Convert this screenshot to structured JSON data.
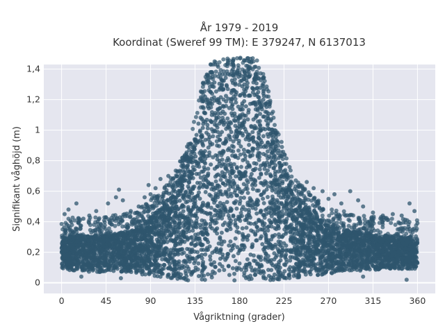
{
  "chart_data": {
    "type": "scatter",
    "title_lines": [
      "År 1979 - 2019",
      "Koordinat (Sweref 99 TM): E 379247, N 6137013"
    ],
    "xlabel": "Vågriktning (grader)",
    "ylabel": "Signifikant våghöjd (m)",
    "xlim": [
      -18,
      378
    ],
    "ylim": [
      -0.07,
      1.43
    ],
    "xticks": [
      0,
      45,
      90,
      135,
      180,
      225,
      270,
      315,
      360
    ],
    "xtick_labels": [
      "0",
      "45",
      "90",
      "135",
      "180",
      "225",
      "270",
      "315",
      "360"
    ],
    "yticks": [
      0,
      0.2,
      0.4,
      0.6,
      0.8,
      1.0,
      1.2,
      1.4
    ],
    "ytick_labels": [
      "0",
      "0,2",
      "0,4",
      "0,6",
      "0,8",
      "1",
      "1,2",
      "1,4"
    ],
    "grid": true,
    "colors": {
      "marker": "#2f566d",
      "plot_bg": "#e5e6ef",
      "grid": "#ffffff"
    },
    "envelope": {
      "description_x_deg": [
        0,
        10,
        20,
        30,
        45,
        60,
        75,
        85,
        95,
        105,
        115,
        125,
        130,
        135,
        140,
        145,
        150,
        155,
        165,
        175,
        185,
        195,
        200,
        205,
        210,
        215,
        220,
        225,
        230,
        240,
        250,
        260,
        270,
        285,
        300,
        315,
        330,
        345,
        360
      ],
      "upper_m": [
        0.3,
        0.31,
        0.31,
        0.31,
        0.32,
        0.33,
        0.35,
        0.4,
        0.46,
        0.52,
        0.62,
        0.74,
        0.85,
        0.98,
        1.12,
        1.24,
        1.31,
        1.34,
        1.35,
        1.36,
        1.36,
        1.35,
        1.33,
        1.25,
        1.12,
        0.98,
        0.86,
        0.76,
        0.65,
        0.55,
        0.48,
        0.42,
        0.38,
        0.35,
        0.33,
        0.32,
        0.31,
        0.3,
        0.29
      ],
      "lower_m": [
        0.09,
        0.08,
        0.08,
        0.07,
        0.07,
        0.07,
        0.06,
        0.05,
        0.04,
        0.03,
        0.02,
        0.02,
        0.01,
        0.01,
        0.01,
        0.01,
        0.01,
        0.01,
        0.01,
        0.01,
        0.01,
        0.01,
        0.01,
        0.01,
        0.01,
        0.01,
        0.02,
        0.02,
        0.03,
        0.03,
        0.04,
        0.05,
        0.06,
        0.07,
        0.08,
        0.08,
        0.09,
        0.09,
        0.09
      ]
    },
    "outliers": [
      [
        3,
        0.45
      ],
      [
        7,
        0.48
      ],
      [
        15,
        0.52
      ],
      [
        22,
        0.42
      ],
      [
        28,
        0.44
      ],
      [
        35,
        0.47
      ],
      [
        40,
        0.38
      ],
      [
        47,
        0.52
      ],
      [
        55,
        0.56
      ],
      [
        58,
        0.61
      ],
      [
        62,
        0.54
      ],
      [
        70,
        0.47
      ],
      [
        78,
        0.5
      ],
      [
        84,
        0.56
      ],
      [
        90,
        0.58
      ],
      [
        95,
        0.62
      ],
      [
        88,
        0.64
      ],
      [
        100,
        0.68
      ],
      [
        108,
        0.7
      ],
      [
        248,
        0.66
      ],
      [
        255,
        0.62
      ],
      [
        264,
        0.6
      ],
      [
        270,
        0.55
      ],
      [
        276,
        0.58
      ],
      [
        283,
        0.52
      ],
      [
        292,
        0.6
      ],
      [
        300,
        0.54
      ],
      [
        305,
        0.5
      ],
      [
        315,
        0.46
      ],
      [
        325,
        0.44
      ],
      [
        335,
        0.45
      ],
      [
        344,
        0.44
      ],
      [
        352,
        0.52
      ],
      [
        357,
        0.47
      ],
      [
        360,
        0.39
      ],
      [
        349,
        0.02
      ],
      [
        305,
        0.04
      ],
      [
        60,
        0.03
      ],
      [
        20,
        0.04
      ],
      [
        185,
        1.38
      ],
      [
        178,
        1.39
      ],
      [
        160,
        1.37
      ]
    ]
  }
}
